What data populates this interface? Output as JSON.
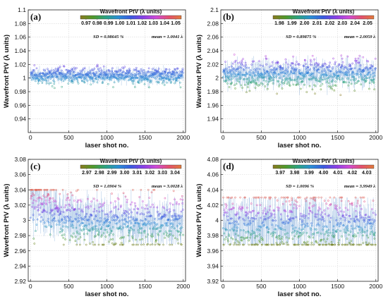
{
  "chart_data": [
    {
      "type": "scatter",
      "panel_label": "(a)",
      "xlabel": "laser shot no.",
      "ylabel": "Wavefront PtV (λ units)",
      "colorbar_title": "Wavefront PtV (λ units)",
      "colorbar_ticks": [
        "0.97",
        "0.98",
        "0.99",
        "1.00",
        "1.01",
        "1.02",
        "1.03",
        "1.04",
        "1.05"
      ],
      "colorbar_range": [
        0.965,
        1.055
      ],
      "sd_text": "SD = 0.98645 %",
      "mean_text": "mean = 1.0041 λ",
      "xlim": [
        -30,
        2030
      ],
      "xticks": [
        0,
        500,
        1000,
        1500,
        2000
      ],
      "xtick_labels": [
        "0",
        "500",
        "1000",
        "1500",
        "2000"
      ],
      "ylim": [
        0.92,
        1.1
      ],
      "yticks": [
        0.94,
        0.96,
        0.98,
        1.0,
        1.02,
        1.04,
        1.06,
        1.08,
        1.1
      ],
      "ytick_labels": [
        "0.94",
        "0.96",
        "0.98",
        "1",
        "1.02",
        "1.04",
        "1.06",
        "1.08",
        "1.1"
      ],
      "grid": true,
      "series": [
        {
          "n_points": 2000,
          "mean": 1.0041,
          "sd_percent": 0.98645,
          "start_value": 1.0041,
          "end_value": 1.0041,
          "max_value": 1.055,
          "min_value": 0.975
        }
      ]
    },
    {
      "type": "scatter",
      "panel_label": "(b)",
      "xlabel": "laser shot no.",
      "ylabel": "Wavefront PtV (λ units)",
      "colorbar_title": "Wavefront PtV (λ units)",
      "colorbar_ticks": [
        "1.98",
        "1.99",
        "2.00",
        "2.01",
        "2.02",
        "2.03",
        "2.04",
        "2.05"
      ],
      "colorbar_range": [
        1.975,
        2.055
      ],
      "sd_text": "SD = 0.89875 %",
      "mean_text": "mean = 2.0059 λ",
      "xlim": [
        -30,
        2030
      ],
      "xticks": [
        0,
        500,
        1000,
        1500,
        2000
      ],
      "xtick_labels": [
        "0",
        "500",
        "1000",
        "1500",
        "2000"
      ],
      "ylim": [
        1.92,
        2.1
      ],
      "yticks": [
        1.94,
        1.96,
        1.98,
        2.0,
        2.02,
        2.04,
        2.06,
        2.08,
        2.1
      ],
      "ytick_labels": [
        "1.94",
        "1.96",
        "1.98",
        "2",
        "2.02",
        "2.04",
        "2.06",
        "2.08",
        "2.1"
      ],
      "grid": true,
      "series": [
        {
          "n_points": 2000,
          "mean": 2.0059,
          "sd_percent": 0.89875,
          "start_value": 2.0059,
          "end_value": 2.0059,
          "max_value": 2.05,
          "min_value": 1.975
        }
      ]
    },
    {
      "type": "scatter",
      "panel_label": "(c)",
      "xlabel": "laser shot no.",
      "ylabel": "Wavefront PtV (λ units)",
      "colorbar_title": "Wavefront PtV (λ units)",
      "colorbar_ticks": [
        "2.97",
        "2.98",
        "2.99",
        "3.00",
        "3.01",
        "3.02",
        "3.03",
        "3.04"
      ],
      "colorbar_range": [
        2.965,
        3.045
      ],
      "sd_text": "SD = 1.0904 %",
      "mean_text": "mean = 3.0028 λ",
      "xlim": [
        -30,
        2030
      ],
      "xticks": [
        0,
        500,
        1000,
        1500,
        2000
      ],
      "xtick_labels": [
        "0",
        "500",
        "1000",
        "1500",
        "2000"
      ],
      "ylim": [
        2.92,
        3.08
      ],
      "yticks": [
        2.92,
        2.94,
        2.96,
        2.98,
        3.0,
        3.02,
        3.04,
        3.06,
        3.08
      ],
      "ytick_labels": [
        "2.92",
        "2.94",
        "2.96",
        "2.98",
        "3",
        "3.02",
        "3.04",
        "3.06",
        "3.08"
      ],
      "grid": true,
      "series": [
        {
          "n_points": 2000,
          "mean": 3.0028,
          "sd_percent": 1.0904,
          "start_value": 3.03,
          "end_value": 2.995,
          "max_value": 3.04,
          "min_value": 2.968
        }
      ]
    },
    {
      "type": "scatter",
      "panel_label": "(d)",
      "xlabel": "laser shot no.",
      "ylabel": "Wavefront PtV (λ units)",
      "colorbar_title": "Wavefront PtV (λ units)",
      "colorbar_ticks": [
        "3.97",
        "3.98",
        "3.99",
        "4.00",
        "4.01",
        "4.02",
        "4.03"
      ],
      "colorbar_range": [
        3.965,
        4.035
      ],
      "sd_text": "SD = 1.0096 %",
      "mean_text": "mean = 3.9949 λ",
      "xlim": [
        -30,
        2030
      ],
      "xticks": [
        0,
        500,
        1000,
        1500,
        2000
      ],
      "xtick_labels": [
        "0",
        "500",
        "1000",
        "1500",
        "2000"
      ],
      "ylim": [
        3.92,
        4.08
      ],
      "yticks": [
        3.92,
        3.94,
        3.96,
        3.98,
        4.0,
        4.02,
        4.04,
        4.06,
        4.08
      ],
      "ytick_labels": [
        "3.92",
        "3.94",
        "3.96",
        "3.98",
        "4",
        "4.02",
        "4.04",
        "4.06",
        "4.08"
      ],
      "grid": true,
      "series": [
        {
          "n_points": 2000,
          "mean": 3.9949,
          "sd_percent": 1.0096,
          "start_value": 3.9949,
          "end_value": 3.9949,
          "max_value": 4.03,
          "min_value": 3.968
        }
      ]
    }
  ],
  "colormap": [
    "#8a7a20",
    "#4f9a2a",
    "#2aa384",
    "#2a8fd6",
    "#3a5ae0",
    "#8a40e6",
    "#d04ad8",
    "#e4506e",
    "#e07a3a"
  ]
}
